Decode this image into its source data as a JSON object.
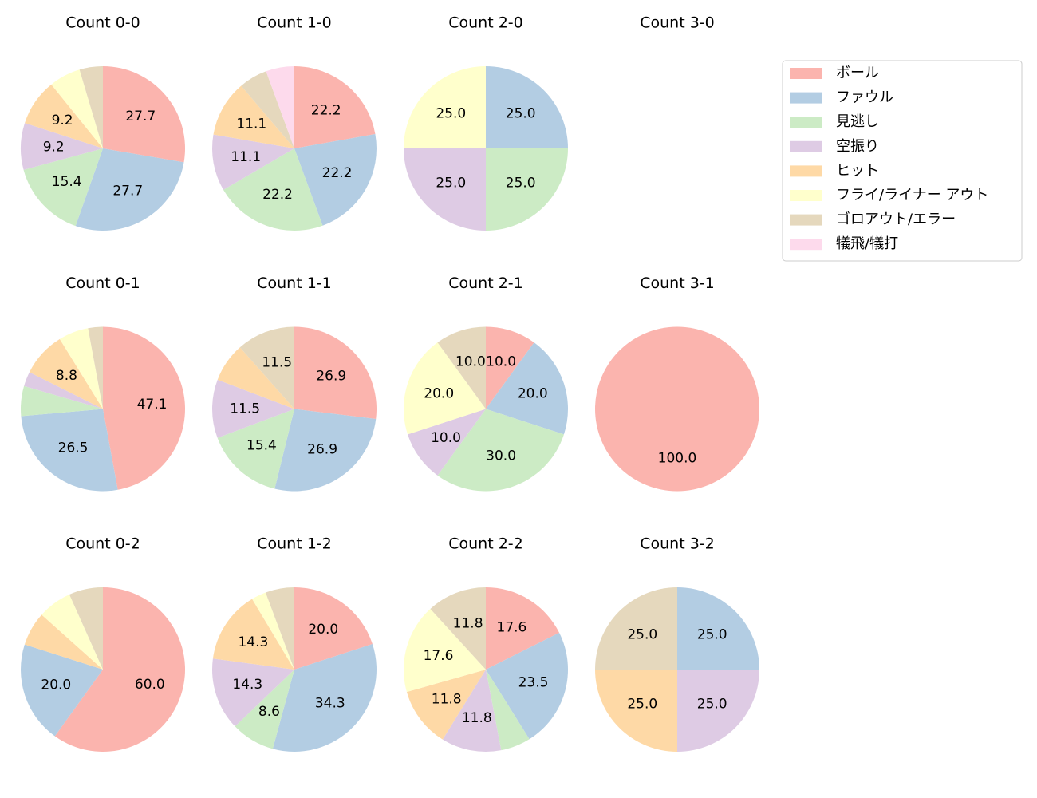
{
  "legend": {
    "labels": [
      "ボール",
      "ファウル",
      "見逃し",
      "空振り",
      "ヒット",
      "フライ/ライナー アウト",
      "ゴロアウト/エラー",
      "犠飛/犠打"
    ],
    "colors": [
      "#fbb4ae",
      "#b3cde3",
      "#ccebc5",
      "#decbe4",
      "#fed9a6",
      "#ffffcc",
      "#e5d8bd",
      "#fddaec"
    ],
    "loc": "upper right"
  },
  "chart_data": [
    {
      "type": "pie",
      "title": "Count 0-0",
      "values": [
        27.7,
        27.7,
        15.4,
        9.2,
        9.2,
        6.2,
        4.6,
        null
      ],
      "value_labels": [
        "27.7",
        "27.7",
        "15.4",
        "9.2",
        "9.2",
        null,
        null,
        null
      ]
    },
    {
      "type": "pie",
      "title": "Count 1-0",
      "values": [
        22.2,
        22.2,
        22.2,
        11.1,
        11.1,
        null,
        5.6,
        5.6
      ],
      "value_labels": [
        "22.2",
        "22.2",
        "22.2",
        "11.1",
        "11.1",
        null,
        null,
        null
      ]
    },
    {
      "type": "pie",
      "title": "Count 2-0",
      "values": [
        null,
        25,
        25,
        25,
        null,
        25,
        null,
        null
      ],
      "value_labels": [
        null,
        "25.0",
        "25.0",
        "25.0",
        null,
        "25.0",
        null,
        null
      ]
    },
    {
      "type": "pie",
      "title": "Count 3-0",
      "values": [
        null,
        null,
        null,
        null,
        null,
        null,
        null,
        null
      ],
      "value_labels": [
        null,
        null,
        null,
        null,
        null,
        null,
        null,
        null
      ]
    },
    {
      "type": "pie",
      "title": "Count 0-1",
      "values": [
        47.1,
        26.5,
        5.9,
        2.9,
        8.8,
        5.9,
        2.9,
        null
      ],
      "value_labels": [
        "47.1",
        "26.5",
        null,
        null,
        "8.8",
        null,
        null,
        null
      ]
    },
    {
      "type": "pie",
      "title": "Count 1-1",
      "values": [
        26.9,
        26.9,
        15.4,
        11.5,
        7.7,
        null,
        11.5,
        null
      ],
      "value_labels": [
        "26.9",
        "26.9",
        "15.4",
        "11.5",
        null,
        null,
        "11.5",
        null
      ]
    },
    {
      "type": "pie",
      "title": "Count 2-1",
      "values": [
        10,
        20,
        30,
        10,
        null,
        20,
        10,
        null
      ],
      "value_labels": [
        "10.0",
        "20.0",
        "30.0",
        "10.0",
        null,
        "20.0",
        "10.0",
        null
      ]
    },
    {
      "type": "pie",
      "title": "Count 3-1",
      "values": [
        100,
        null,
        null,
        null,
        null,
        null,
        null,
        null
      ],
      "value_labels": [
        "100.0",
        null,
        null,
        null,
        null,
        null,
        null,
        null
      ]
    },
    {
      "type": "pie",
      "title": "Count 0-2",
      "values": [
        60,
        20,
        null,
        null,
        6.7,
        6.7,
        6.7,
        null
      ],
      "value_labels": [
        "60.0",
        "20.0",
        null,
        null,
        null,
        null,
        null,
        null
      ]
    },
    {
      "type": "pie",
      "title": "Count 1-2",
      "values": [
        20,
        34.3,
        8.6,
        14.3,
        14.3,
        2.9,
        5.7,
        null
      ],
      "value_labels": [
        "20.0",
        "34.3",
        "8.6",
        "14.3",
        "14.3",
        null,
        null,
        null
      ]
    },
    {
      "type": "pie",
      "title": "Count 2-2",
      "values": [
        17.6,
        23.5,
        5.9,
        11.8,
        11.8,
        17.6,
        11.8,
        null
      ],
      "value_labels": [
        "17.6",
        "23.5",
        null,
        "11.8",
        "11.8",
        "17.6",
        "11.8",
        null
      ]
    },
    {
      "type": "pie",
      "title": "Count 3-2",
      "values": [
        null,
        25,
        null,
        25,
        25,
        null,
        25,
        null
      ],
      "value_labels": [
        null,
        "25.0",
        null,
        "25.0",
        "25.0",
        null,
        "25.0",
        null
      ]
    }
  ]
}
